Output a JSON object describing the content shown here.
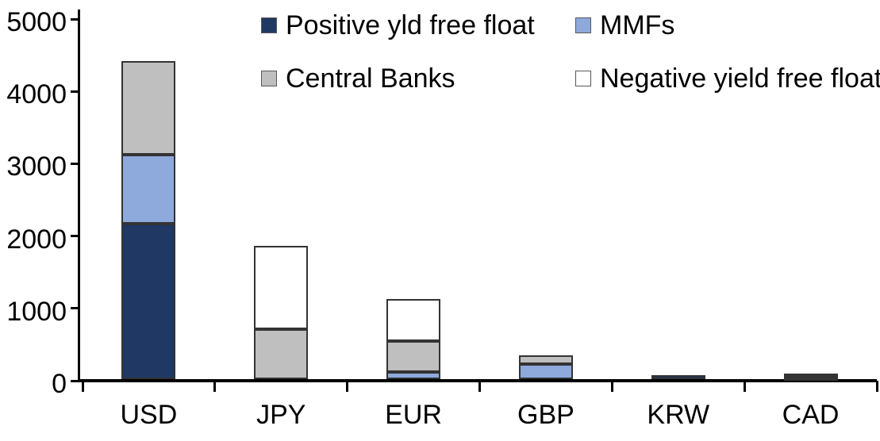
{
  "figure": {
    "background": "#ffffff",
    "axis_color": "#000000",
    "segment_border_color": "#333333"
  },
  "chart_data": {
    "type": "bar",
    "subtype": "stacked-vertical",
    "title": "",
    "xlabel": "",
    "ylabel": "",
    "categories": [
      "USD",
      "JPY",
      "EUR",
      "GBP",
      "KRW",
      "CAD"
    ],
    "series": [
      {
        "name": "Positive yld free float",
        "color": "#1f3864",
        "values": [
          2150,
          0,
          0,
          0,
          50,
          25
        ]
      },
      {
        "name": "MMFs",
        "color": "#8ea9db",
        "values": [
          950,
          0,
          100,
          210,
          0,
          10
        ]
      },
      {
        "name": "Central Banks",
        "color": "#bfbfbf",
        "values": [
          1300,
          690,
          430,
          120,
          0,
          30
        ]
      },
      {
        "name": "Negative yield free float",
        "color": "#ffffff",
        "values": [
          0,
          1150,
          580,
          0,
          0,
          0
        ]
      }
    ],
    "totals": [
      4400,
      1840,
      1110,
      330,
      50,
      65
    ],
    "ylim": [
      0,
      5000
    ],
    "yticks": [
      0,
      1000,
      2000,
      3000,
      4000,
      5000
    ],
    "ytick_labels": [
      "0",
      "1000",
      "2000",
      "3000",
      "4000",
      "5000"
    ],
    "grid": false,
    "legend_position": "top",
    "legend_layout": "2x2"
  }
}
